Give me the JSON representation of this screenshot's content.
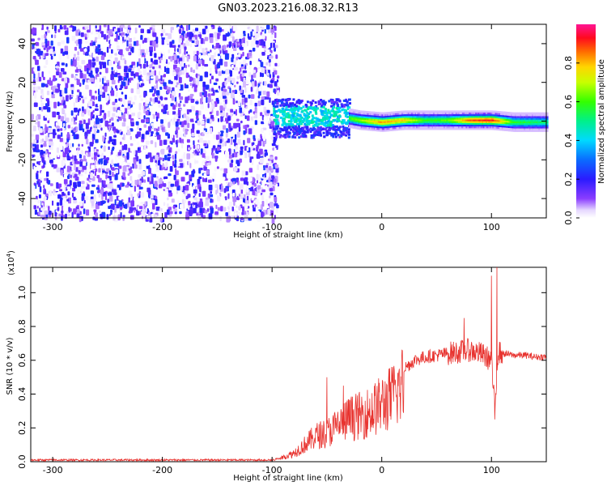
{
  "title": "GN03.2023.216.08.32.R13",
  "chart_data": [
    {
      "type": "heatmap",
      "xlabel": "Height of straight line (km)",
      "ylabel": "Frequency (Hz)",
      "xlim": [
        -320,
        150
      ],
      "ylim": [
        -50,
        50
      ],
      "xticks": [
        -300,
        -200,
        -100,
        0,
        100
      ],
      "yticks": [
        -40,
        -20,
        0,
        20,
        40
      ],
      "colorbar": {
        "label": "Normalized spectral amplitude",
        "range": [
          0.0,
          1.0
        ],
        "ticks": [
          0.0,
          0.2,
          0.4,
          0.6,
          0.8
        ],
        "tick_labels": [
          "0.0",
          "0.2",
          "0.4",
          "0.6",
          "0.8"
        ],
        "colormap": "rainbow"
      },
      "regions": [
        {
          "x_range": [
            -320,
            -100
          ],
          "freq_range": [
            -50,
            50
          ],
          "amplitude": [
            0.0,
            0.25
          ]
        },
        {
          "x_range": [
            -100,
            -30
          ],
          "freq_range": [
            -8,
            12
          ],
          "amplitude": [
            0.2,
            0.5
          ]
        },
        {
          "x_range": [
            -30,
            150
          ],
          "freq_range": [
            -3,
            5
          ],
          "amplitude": [
            0.3,
            0.95
          ]
        }
      ],
      "ridge": {
        "x": [
          -100,
          -80,
          -60,
          -40,
          -20,
          0,
          20,
          40,
          60,
          80,
          100,
          120,
          150
        ],
        "freq": [
          4,
          3,
          4,
          3,
          1,
          0,
          1,
          1,
          1,
          1,
          1,
          0,
          0
        ],
        "amplitude": [
          0.4,
          0.45,
          0.5,
          0.55,
          0.7,
          0.85,
          0.8,
          0.6,
          0.65,
          0.9,
          0.95,
          0.6,
          0.55
        ]
      }
    },
    {
      "type": "line",
      "xlabel": "Height of straight line (km)",
      "ylabel": "SNR (10 * v/v)",
      "multiplier_label": "(x10",
      "multiplier_exp": "4",
      "multiplier_close": ")",
      "xlim": [
        -320,
        150
      ],
      "ylim": [
        0,
        1.15
      ],
      "xticks": [
        -300,
        -200,
        -100,
        0,
        100
      ],
      "yticks": [
        0.0,
        0.2,
        0.4,
        0.6,
        0.8,
        1.0
      ],
      "ytick_labels": [
        "0.0",
        "0.2",
        "0.4",
        "0.6",
        "0.8",
        "1.0"
      ],
      "color": "#e8332f",
      "series": [
        {
          "x": [
            -320,
            -300,
            -250,
            -200,
            -150,
            -100,
            -90,
            -80,
            -70,
            -60,
            -50,
            -40,
            -30,
            -20,
            -10,
            0,
            10,
            20,
            30,
            40,
            50,
            60,
            70,
            80,
            90,
            100,
            103,
            106,
            110,
            120,
            130,
            140,
            150
          ],
          "y": [
            0.01,
            0.01,
            0.01,
            0.01,
            0.01,
            0.01,
            0.03,
            0.06,
            0.12,
            0.18,
            0.2,
            0.25,
            0.3,
            0.32,
            0.35,
            0.4,
            0.45,
            0.55,
            0.6,
            0.62,
            0.63,
            0.64,
            0.65,
            0.66,
            0.64,
            0.6,
            0.3,
            0.65,
            0.64,
            0.63,
            0.63,
            0.62,
            0.62
          ]
        }
      ],
      "spikes": [
        {
          "x": -50,
          "y": 0.5
        },
        {
          "x": -35,
          "y": 0.45
        },
        {
          "x": 75,
          "y": 0.85
        },
        {
          "x": 100,
          "y": 1.1
        },
        {
          "x": 105,
          "y": 1.15
        },
        {
          "x": 103,
          "y": 0.25
        }
      ]
    }
  ],
  "colors": {
    "line": "#e8332f",
    "background": "#ffffff",
    "axis": "#000000"
  }
}
